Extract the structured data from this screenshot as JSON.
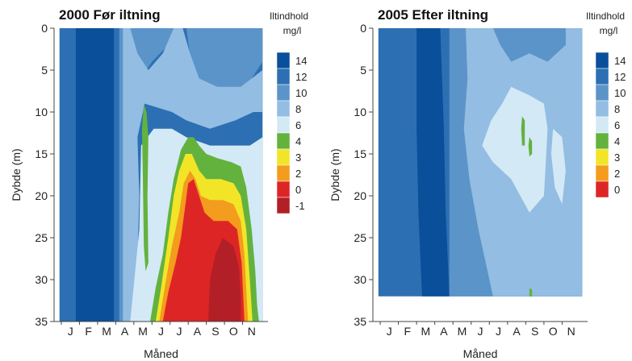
{
  "chart_data": [
    {
      "type": "heatmap",
      "title": "2000 Før iltning",
      "xlabel": "Måned",
      "ylabel": "Dybde (m)",
      "x_categories": [
        "J",
        "F",
        "M",
        "A",
        "M",
        "J",
        "J",
        "A",
        "S",
        "O",
        "N"
      ],
      "ylim": [
        35,
        0
      ],
      "y_ticks": [
        0,
        5,
        10,
        15,
        20,
        25,
        30,
        35
      ],
      "colorbar_title": "Iltindhold",
      "colorbar_unit": "mg/l",
      "colorbar_levels": [
        "14",
        "12",
        "10",
        "8",
        "6",
        "4",
        "3",
        "2",
        "0",
        "-1"
      ],
      "level_colors": [
        "#0a4f9a",
        "#2d6fb3",
        "#5b94c9",
        "#93bde2",
        "#d3e9f5",
        "#63b23e",
        "#f2e528",
        "#f39c1d",
        "#de2526",
        "#b31f26"
      ],
      "contours": [
        {
          "level": "12",
          "points": [
            [
              0.3,
              0
            ],
            [
              0.3,
              35
            ],
            [
              11.5,
              35
            ],
            [
              11.5,
              0
            ]
          ]
        },
        {
          "level": "14",
          "points": [
            [
              1.2,
              0
            ],
            [
              1.2,
              35
            ],
            [
              3.3,
              35
            ],
            [
              3.3,
              0
            ]
          ]
        },
        {
          "level": "10",
          "points": [
            [
              3.6,
              0
            ],
            [
              3.6,
              35
            ],
            [
              4.2,
              35
            ],
            [
              4.5,
              30
            ],
            [
              4.6,
              22
            ],
            [
              4.5,
              12
            ],
            [
              4.8,
              6
            ],
            [
              5.4,
              4
            ],
            [
              6.3,
              2
            ],
            [
              6.9,
              0
            ]
          ]
        },
        {
          "level": "10",
          "points": [
            [
              7.3,
              0
            ],
            [
              7.6,
              5
            ],
            [
              8.3,
              7
            ],
            [
              9.6,
              8
            ],
            [
              10.6,
              7
            ],
            [
              11.2,
              5
            ],
            [
              11.5,
              4
            ],
            [
              11.5,
              0
            ]
          ]
        },
        {
          "level": "8",
          "points": [
            [
              3.8,
              0
            ],
            [
              3.8,
              35
            ],
            [
              4.2,
              35
            ],
            [
              4.6,
              28
            ],
            [
              4.7,
              20
            ],
            [
              4.6,
              13
            ],
            [
              5.0,
              9
            ],
            [
              6.5,
              10
            ],
            [
              7.3,
              11
            ],
            [
              8.6,
              12
            ],
            [
              10.0,
              11
            ],
            [
              11.0,
              10
            ],
            [
              11.5,
              10
            ],
            [
              11.5,
              5
            ],
            [
              10.3,
              7
            ],
            [
              9.0,
              7
            ],
            [
              8.0,
              6
            ],
            [
              7.5,
              3
            ],
            [
              7.1,
              0
            ],
            [
              6.6,
              0
            ],
            [
              6.0,
              3
            ],
            [
              5.2,
              5
            ],
            [
              4.6,
              3
            ],
            [
              4.2,
              0
            ]
          ]
        },
        {
          "level": "6",
          "points": [
            [
              4.2,
              35
            ],
            [
              4.7,
              24
            ],
            [
              4.8,
              14
            ],
            [
              5.5,
              12
            ],
            [
              6.5,
              12
            ],
            [
              7.3,
              13
            ],
            [
              8.6,
              14
            ],
            [
              9.8,
              14
            ],
            [
              10.8,
              14
            ],
            [
              11.5,
              13
            ],
            [
              11.5,
              35
            ]
          ]
        },
        {
          "level": "4",
          "points": [
            [
              5.3,
              35
            ],
            [
              5.6,
              31
            ],
            [
              6.0,
              27
            ],
            [
              6.3,
              22
            ],
            [
              6.6,
              18
            ],
            [
              7.0,
              14.5
            ],
            [
              7.4,
              13
            ],
            [
              7.7,
              13
            ],
            [
              8.0,
              14
            ],
            [
              8.4,
              15
            ],
            [
              9.0,
              15.5
            ],
            [
              9.8,
              16
            ],
            [
              10.3,
              16.5
            ],
            [
              10.6,
              19
            ],
            [
              10.9,
              24
            ],
            [
              11.1,
              29
            ],
            [
              11.2,
              33
            ],
            [
              11.3,
              35
            ]
          ]
        },
        {
          "level": "4",
          "points": [
            [
              4.95,
              9
            ],
            [
              5.1,
              10
            ],
            [
              5.2,
              13
            ],
            [
              5.15,
              20
            ],
            [
              5.2,
              28
            ],
            [
              5.05,
              29
            ],
            [
              4.95,
              26
            ],
            [
              4.9,
              18
            ],
            [
              4.85,
              12
            ]
          ]
        },
        {
          "level": "3",
          "points": [
            [
              5.6,
              35
            ],
            [
              5.9,
              31
            ],
            [
              6.3,
              25
            ],
            [
              6.6,
              20
            ],
            [
              6.9,
              17
            ],
            [
              7.25,
              15
            ],
            [
              7.6,
              15
            ],
            [
              8.0,
              17
            ],
            [
              8.4,
              18
            ],
            [
              9.2,
              18
            ],
            [
              9.9,
              18.5
            ],
            [
              10.3,
              20
            ],
            [
              10.6,
              24
            ],
            [
              10.8,
              30
            ],
            [
              10.95,
              35
            ]
          ]
        },
        {
          "level": "2",
          "points": [
            [
              5.8,
              35
            ],
            [
              6.1,
              31
            ],
            [
              6.5,
              26
            ],
            [
              6.9,
              22
            ],
            [
              7.15,
              18.5
            ],
            [
              7.5,
              17
            ],
            [
              7.8,
              18
            ],
            [
              8.1,
              20
            ],
            [
              8.6,
              20.5
            ],
            [
              9.3,
              20.5
            ],
            [
              9.9,
              21
            ],
            [
              10.3,
              23
            ],
            [
              10.5,
              27
            ],
            [
              10.7,
              35
            ]
          ]
        },
        {
          "level": "0",
          "points": [
            [
              6.0,
              35
            ],
            [
              6.3,
              31.5
            ],
            [
              6.7,
              28
            ],
            [
              7.0,
              25
            ],
            [
              7.25,
              21
            ],
            [
              7.4,
              18.5
            ],
            [
              7.7,
              18
            ],
            [
              8.0,
              20
            ],
            [
              8.3,
              22
            ],
            [
              8.8,
              23
            ],
            [
              9.6,
              23
            ],
            [
              10.1,
              24
            ],
            [
              10.35,
              28
            ],
            [
              10.5,
              35
            ]
          ]
        },
        {
          "level": "-1",
          "points": [
            [
              8.5,
              35
            ],
            [
              8.6,
              30
            ],
            [
              8.9,
              27
            ],
            [
              9.3,
              25
            ],
            [
              9.9,
              26
            ],
            [
              10.2,
              28.5
            ],
            [
              10.3,
              32
            ],
            [
              10.3,
              35
            ]
          ]
        }
      ]
    },
    {
      "type": "heatmap",
      "title": "2005 Efter iltning",
      "xlabel": "Måned",
      "ylabel": "Dybde (m)",
      "x_categories": [
        "J",
        "F",
        "M",
        "A",
        "M",
        "J",
        "J",
        "A",
        "S",
        "O",
        "N"
      ],
      "ylim": [
        35,
        0
      ],
      "y_ticks": [
        0,
        5,
        10,
        15,
        20,
        25,
        30,
        35
      ],
      "data_ylim": [
        32,
        0
      ],
      "colorbar_title": "Iltindhold",
      "colorbar_unit": "mg/l",
      "colorbar_levels": [
        "14",
        "12",
        "10",
        "8",
        "6",
        "4",
        "3",
        "2",
        "0"
      ],
      "level_colors": [
        "#0a4f9a",
        "#2d6fb3",
        "#5b94c9",
        "#93bde2",
        "#d3e9f5",
        "#63b23e",
        "#f2e528",
        "#f39c1d",
        "#de2526"
      ],
      "contours": [
        {
          "level": "12",
          "points": [
            [
              0.3,
              0
            ],
            [
              0.3,
              32
            ],
            [
              11.5,
              32
            ],
            [
              11.5,
              0
            ]
          ]
        },
        {
          "level": "14",
          "points": [
            [
              2.4,
              0
            ],
            [
              2.4,
              12
            ],
            [
              2.5,
              22
            ],
            [
              2.7,
              32
            ],
            [
              4.2,
              32
            ],
            [
              4.0,
              22
            ],
            [
              3.9,
              12
            ],
            [
              3.7,
              0
            ]
          ]
        },
        {
          "level": "10",
          "points": [
            [
              4.2,
              0
            ],
            [
              4.2,
              32
            ],
            [
              11.5,
              32
            ],
            [
              11.5,
              0
            ]
          ]
        },
        {
          "level": "8",
          "points": [
            [
              5.1,
              0
            ],
            [
              5.2,
              6
            ],
            [
              5.0,
              12
            ],
            [
              5.3,
              18
            ],
            [
              5.8,
              24
            ],
            [
              6.2,
              28
            ],
            [
              6.6,
              32
            ],
            [
              11.5,
              32
            ],
            [
              11.5,
              0
            ],
            [
              10.6,
              0
            ],
            [
              10.6,
              2
            ],
            [
              9.6,
              4
            ],
            [
              8.6,
              3
            ],
            [
              7.6,
              4
            ],
            [
              7.0,
              2
            ],
            [
              6.6,
              0
            ]
          ]
        },
        {
          "level": "6",
          "points": [
            [
              7.6,
              7
            ],
            [
              8.6,
              8
            ],
            [
              9.4,
              9
            ],
            [
              9.6,
              12
            ],
            [
              9.5,
              16
            ],
            [
              9.4,
              20
            ],
            [
              8.6,
              22
            ],
            [
              7.6,
              18
            ],
            [
              6.6,
              16
            ],
            [
              6.0,
              14
            ],
            [
              6.5,
              11
            ],
            [
              7.1,
              9
            ]
          ]
        },
        {
          "level": "6",
          "points": [
            [
              9.9,
              12
            ],
            [
              10.4,
              13
            ],
            [
              10.6,
              17
            ],
            [
              10.4,
              21
            ],
            [
              10.0,
              19
            ],
            [
              9.8,
              15
            ]
          ]
        },
        {
          "level": "4",
          "points": [
            [
              8.2,
              10.5
            ],
            [
              8.35,
              11
            ],
            [
              8.35,
              14
            ],
            [
              8.2,
              14
            ],
            [
              8.15,
              12
            ]
          ]
        },
        {
          "level": "4",
          "points": [
            [
              8.6,
              13
            ],
            [
              8.75,
              13.5
            ],
            [
              8.75,
              15
            ],
            [
              8.6,
              15.3
            ],
            [
              8.55,
              14
            ]
          ]
        },
        {
          "level": "4",
          "points": [
            [
              8.6,
              31
            ],
            [
              8.75,
              31.2
            ],
            [
              8.75,
              32
            ],
            [
              8.6,
              32
            ]
          ]
        }
      ]
    }
  ]
}
